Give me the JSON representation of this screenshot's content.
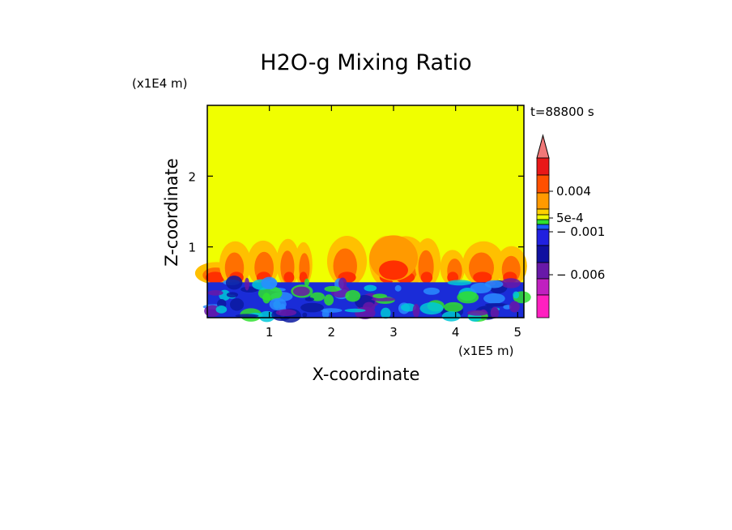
{
  "chart_data": {
    "type": "heatmap",
    "title": "H2O-g Mixing Ratio",
    "xlabel": "X-coordinate",
    "ylabel": "Z-coordinate",
    "x_multiplier": "(x1E5 m)",
    "y_multiplier": "(x1E4 m)",
    "time_label": "t=88800 s",
    "xlim": [
      0,
      5.1
    ],
    "ylim": [
      0,
      3
    ],
    "x_ticks": [
      1,
      2,
      3,
      4,
      5
    ],
    "x_tick_labels": [
      "1",
      "2",
      "3",
      "4",
      "5"
    ],
    "y_ticks": [
      1,
      2
    ],
    "y_tick_labels": [
      "1",
      "2"
    ],
    "colorbar": {
      "levels_top_to_bottom": [
        {
          "color": "#f07878",
          "level": "top"
        },
        {
          "color": "#e81818"
        },
        {
          "color": "#ff5000"
        },
        {
          "color": "#ff9a00"
        },
        {
          "color": "#ffd000"
        },
        {
          "color": "#f0ff00"
        },
        {
          "color": "#30e030"
        },
        {
          "color": "#1a5cff"
        },
        {
          "color": "#2020e0"
        },
        {
          "color": "#1010a0"
        },
        {
          "color": "#6818a8"
        },
        {
          "color": "#c020c0"
        },
        {
          "color": "#ff20c0"
        }
      ],
      "tick_labels": [
        "0.004",
        "5e-4",
        "− 0.001",
        "− 0.006"
      ]
    },
    "field_colors": {
      "background": "#f0ff00",
      "plumes": [
        "#ffc000",
        "#ff9a00",
        "#ff7000",
        "#ff3000"
      ],
      "boundary_layer": "#1a2cd8",
      "bl_variations": [
        "#0c1aa0",
        "#2a8cff",
        "#30e030",
        "#6818a8",
        "#00c8d8"
      ]
    }
  }
}
